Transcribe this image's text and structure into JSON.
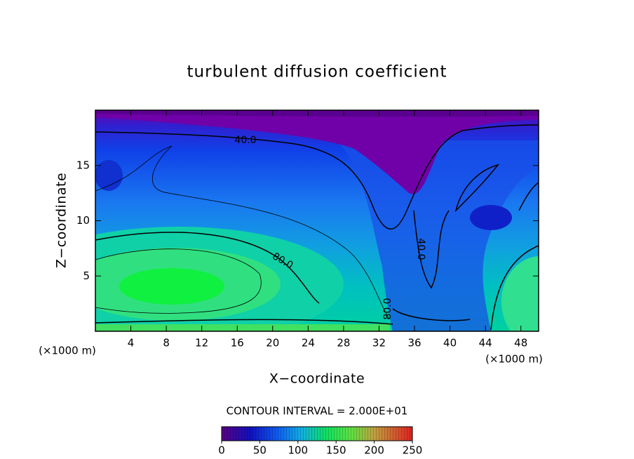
{
  "chart_data": {
    "type": "contour",
    "title": "turbulent diffusion coefficient",
    "xlabel": "X−coordinate",
    "ylabel": "Z−coordinate",
    "y_unit": "(×1000 m)",
    "x_unit": "(×1000 m)",
    "xlim": [
      0,
      50
    ],
    "ylim": [
      0,
      20
    ],
    "xticks": [
      4,
      8,
      12,
      16,
      20,
      24,
      28,
      32,
      36,
      40,
      44,
      48
    ],
    "yticks": [
      5,
      10,
      15
    ],
    "contour_interval_label": "CONTOUR INTERVAL = 2.000E+01",
    "contour_labels": [
      {
        "value": 40,
        "label": "40.0"
      },
      {
        "value": 80,
        "label": "80.0"
      },
      {
        "value": 40,
        "label": "40.0"
      },
      {
        "value": 80,
        "label": "80.0"
      }
    ],
    "colorbar": {
      "lim": [
        0,
        250
      ],
      "ticks": [
        0,
        50,
        100,
        150,
        200,
        250
      ]
    }
  }
}
